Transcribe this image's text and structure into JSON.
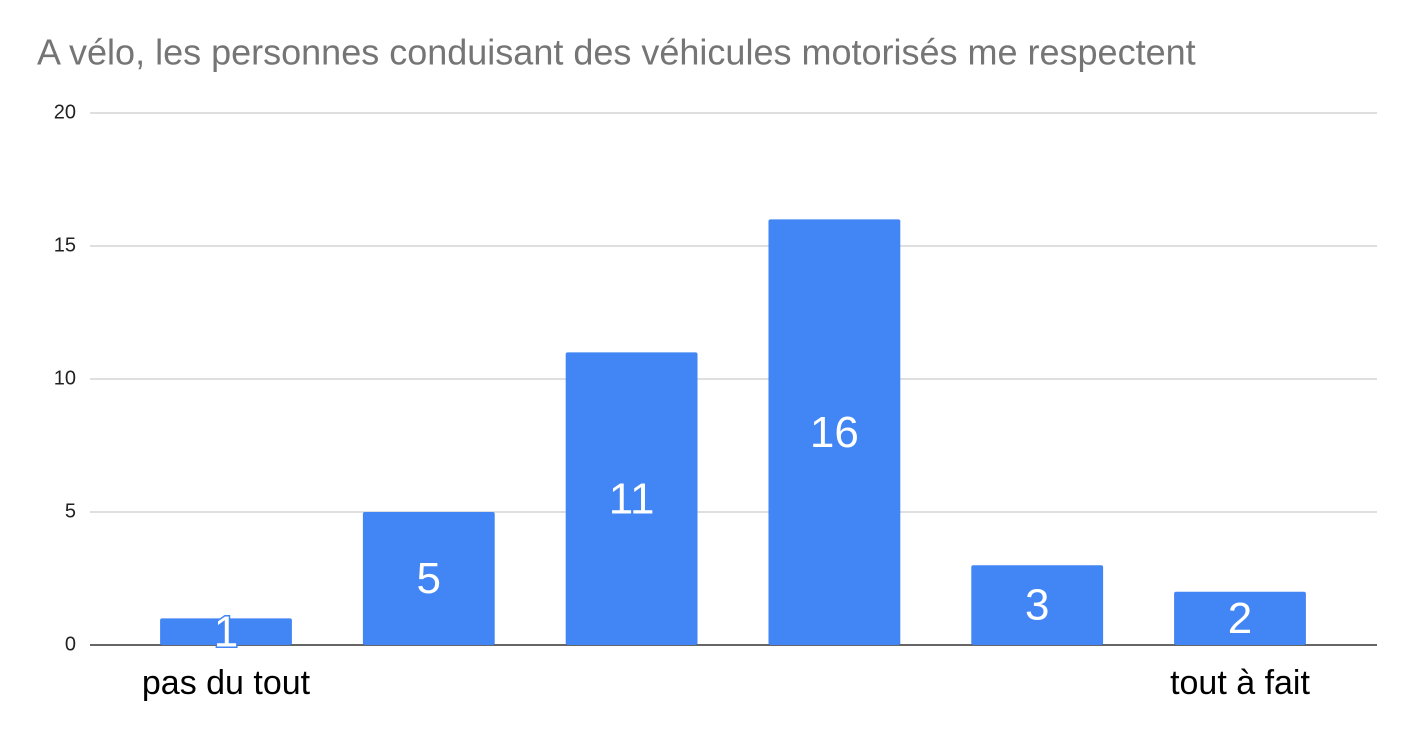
{
  "chart_data": {
    "type": "bar",
    "title": "A vélo, les personnes conduisant des véhicules motorisés me respectent",
    "categories": [
      "pas du tout",
      null,
      null,
      null,
      null,
      "tout à fait"
    ],
    "values": [
      1,
      5,
      11,
      16,
      3,
      2
    ],
    "color": "#4285f4",
    "ylim": [
      0,
      20
    ],
    "yticks": [
      0,
      5,
      10,
      15,
      20
    ],
    "grid": true
  }
}
